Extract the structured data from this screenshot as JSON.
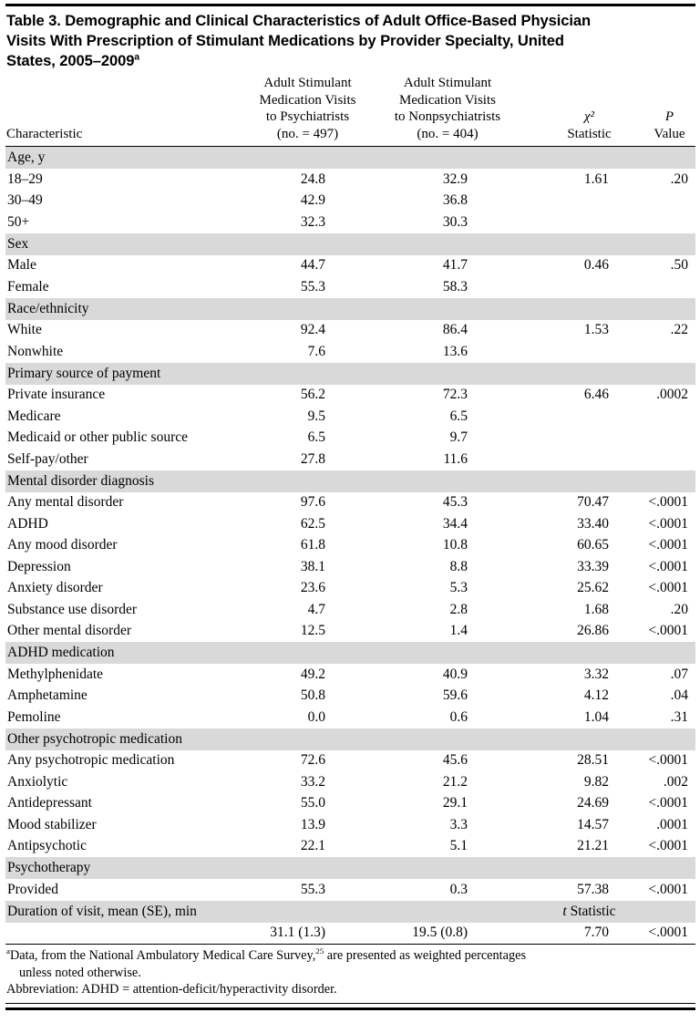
{
  "colors": {
    "band_background": "#d9d9d9"
  },
  "title_lines": [
    "Table 3. Demographic and Clinical Characteristics of Adult Office-Based Physician",
    "Visits With Prescription of Stimulant Medications by Provider Specialty, United",
    "States, 2005–2009"
  ],
  "title_sup": "a",
  "columns": {
    "characteristic": "Characteristic",
    "psychiatrists": [
      "Adult Stimulant",
      "Medication Visits",
      "to Psychiatrists",
      "(no. = 497)"
    ],
    "nonpsychiatrists": [
      "Adult Stimulant",
      "Medication Visits",
      "to Nonpsychiatrists",
      "(no. = 404)"
    ],
    "chi_symbol": "χ²",
    "chi_label": "Statistic",
    "p_symbol": "P",
    "p_label": "Value"
  },
  "table": {
    "sections": [
      {
        "header": "Age, y",
        "rows": [
          {
            "label": "18–29",
            "c1": "24.8",
            "c2": "32.9",
            "c3": "1.61",
            "c4": ".20"
          },
          {
            "label": "30–49",
            "c1": "42.9",
            "c2": "36.8",
            "c3": "",
            "c4": ""
          },
          {
            "label": "50+",
            "c1": "32.3",
            "c2": "30.3",
            "c3": "",
            "c4": ""
          }
        ]
      },
      {
        "header": "Sex",
        "rows": [
          {
            "label": "Male",
            "c1": "44.7",
            "c2": "41.7",
            "c3": "0.46",
            "c4": ".50"
          },
          {
            "label": "Female",
            "c1": "55.3",
            "c2": "58.3",
            "c3": "",
            "c4": ""
          }
        ]
      },
      {
        "header": "Race/ethnicity",
        "rows": [
          {
            "label": "White",
            "c1": "92.4",
            "c2": "86.4",
            "c3": "1.53",
            "c4": ".22"
          },
          {
            "label": "Nonwhite",
            "c1": "7.6",
            "c2": "13.6",
            "c3": "",
            "c4": ""
          }
        ]
      },
      {
        "header": "Primary source of payment",
        "rows": [
          {
            "label": "Private insurance",
            "c1": "56.2",
            "c2": "72.3",
            "c3": "6.46",
            "c4": ".0002"
          },
          {
            "label": "Medicare",
            "c1": "9.5",
            "c2": "6.5",
            "c3": "",
            "c4": ""
          },
          {
            "label": "Medicaid or other public source",
            "c1": "6.5",
            "c2": "9.7",
            "c3": "",
            "c4": ""
          },
          {
            "label": "Self-pay/other",
            "c1": "27.8",
            "c2": "11.6",
            "c3": "",
            "c4": ""
          }
        ]
      },
      {
        "header": "Mental disorder diagnosis",
        "rows": [
          {
            "label": "Any mental disorder",
            "c1": "97.6",
            "c2": "45.3",
            "c3": "70.47",
            "c4": "<.0001"
          },
          {
            "label": "ADHD",
            "c1": "62.5",
            "c2": "34.4",
            "c3": "33.40",
            "c4": "<.0001"
          },
          {
            "label": "Any mood disorder",
            "c1": "61.8",
            "c2": "10.8",
            "c3": "60.65",
            "c4": "<.0001"
          },
          {
            "label": "Depression",
            "c1": "38.1",
            "c2": "8.8",
            "c3": "33.39",
            "c4": "<.0001"
          },
          {
            "label": "Anxiety disorder",
            "c1": "23.6",
            "c2": "5.3",
            "c3": "25.62",
            "c4": "<.0001"
          },
          {
            "label": "Substance use disorder",
            "c1": "4.7",
            "c2": "2.8",
            "c3": "1.68",
            "c4": ".20"
          },
          {
            "label": "Other mental disorder",
            "c1": "12.5",
            "c2": "1.4",
            "c3": "26.86",
            "c4": "<.0001"
          }
        ]
      },
      {
        "header": "ADHD medication",
        "rows": [
          {
            "label": "Methylphenidate",
            "c1": "49.2",
            "c2": "40.9",
            "c3": "3.32",
            "c4": ".07"
          },
          {
            "label": "Amphetamine",
            "c1": "50.8",
            "c2": "59.6",
            "c3": "4.12",
            "c4": ".04"
          },
          {
            "label": "Pemoline",
            "c1": "0.0",
            "c2": "0.6",
            "c3": "1.04",
            "c4": ".31"
          }
        ]
      },
      {
        "header": "Other psychotropic medication",
        "rows": [
          {
            "label": "Any psychotropic medication",
            "c1": "72.6",
            "c2": "45.6",
            "c3": "28.51",
            "c4": "<.0001"
          },
          {
            "label": "Anxiolytic",
            "c1": "33.2",
            "c2": "21.2",
            "c3": "9.82",
            "c4": ".002"
          },
          {
            "label": "Antidepressant",
            "c1": "55.0",
            "c2": "29.1",
            "c3": "24.69",
            "c4": "<.0001"
          },
          {
            "label": "Mood stabilizer",
            "c1": "13.9",
            "c2": "3.3",
            "c3": "14.57",
            "c4": ".0001"
          },
          {
            "label": "Antipsychotic",
            "c1": "22.1",
            "c2": "5.1",
            "c3": "21.21",
            "c4": "<.0001"
          }
        ]
      },
      {
        "header": "Psychotherapy",
        "rows": [
          {
            "label": "Provided",
            "c1": "55.3",
            "c2": "0.3",
            "c3": "57.38",
            "c4": "<.0001"
          }
        ]
      },
      {
        "header": "Duration of visit, mean (SE), min",
        "note": {
          "symbol": "t",
          "label": "Statistic"
        },
        "rows": [
          {
            "label": "",
            "c1": "31.1 (1.3)",
            "c2": "19.5 (0.8)",
            "c3": "7.70",
            "c4": "<.0001"
          }
        ]
      }
    ]
  },
  "footnotes": {
    "a_marker": "a",
    "a_text1": "Data, from the National Ambulatory Medical Care Survey,",
    "a_ref": "25",
    "a_text2": " are presented as weighted percentages",
    "a_text3": "unless noted otherwise.",
    "abbreviation": "Abbreviation: ADHD = attention-deficit/hyperactivity disorder."
  }
}
